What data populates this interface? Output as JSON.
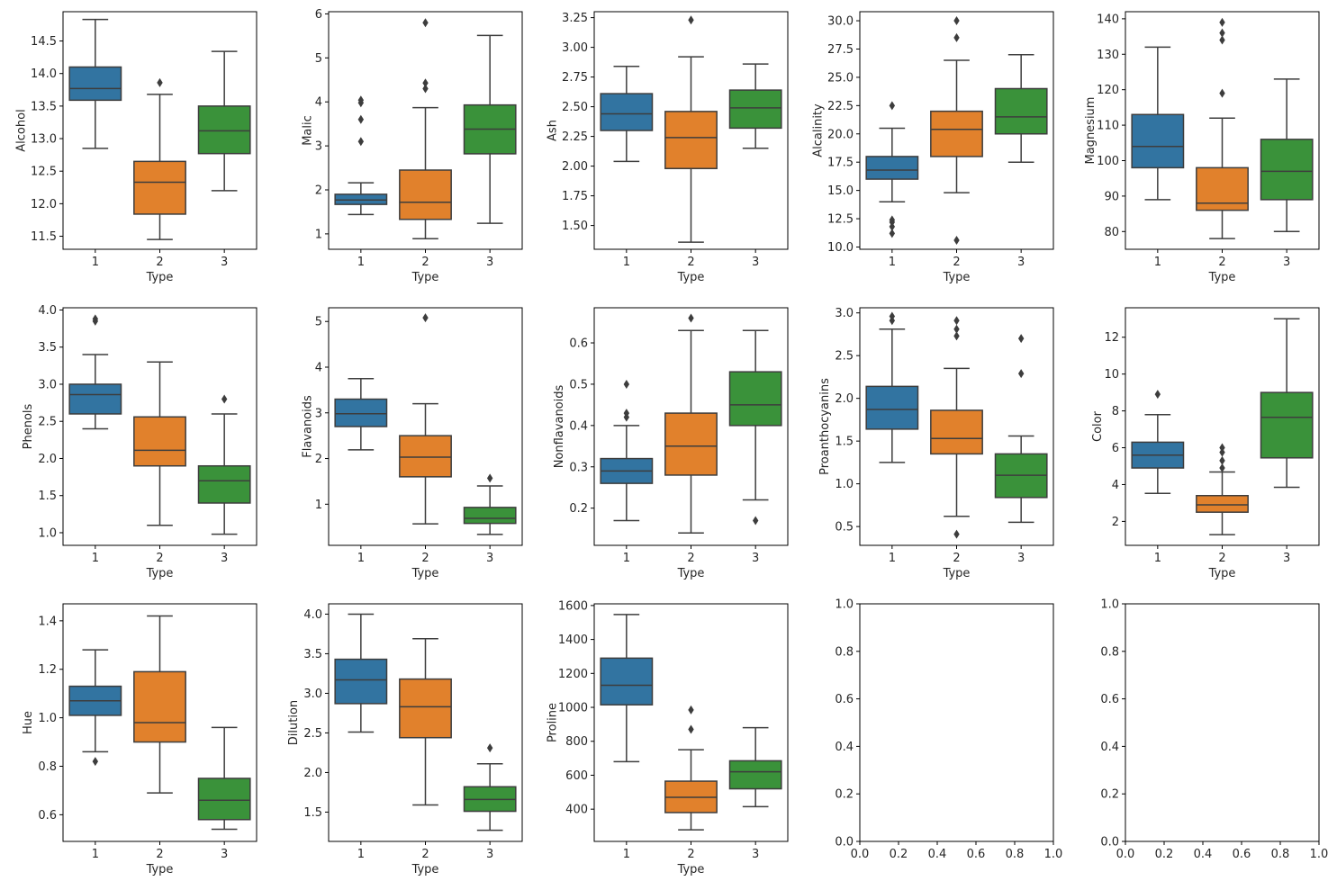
{
  "figure": {
    "colors": {
      "1": "#3274a1",
      "2": "#e1812c",
      "3": "#3a923a",
      "line": "#3d3d3d",
      "frame": "#000000"
    }
  },
  "chart_data": [
    {
      "type": "boxplot",
      "ylabel": "Alcohol",
      "xlabel": "Type",
      "categories": [
        "1",
        "2",
        "3"
      ],
      "ylim": [
        11.3,
        14.95
      ],
      "yticks": [
        11.5,
        12.0,
        12.5,
        13.0,
        13.5,
        14.0,
        14.5
      ],
      "ytick_labels": [
        "11.5",
        "12.0",
        "12.5",
        "13.0",
        "13.5",
        "14.0",
        "14.5"
      ],
      "boxes": [
        {
          "whislo": 12.85,
          "q1": 13.59,
          "med": 13.77,
          "q3": 14.1,
          "whishi": 14.83,
          "fliers": []
        },
        {
          "whislo": 11.45,
          "q1": 11.84,
          "med": 12.33,
          "q3": 12.65,
          "whishi": 13.68,
          "fliers": [
            13.86
          ]
        },
        {
          "whislo": 12.2,
          "q1": 12.77,
          "med": 13.12,
          "q3": 13.5,
          "whishi": 14.34,
          "fliers": []
        }
      ]
    },
    {
      "type": "boxplot",
      "ylabel": "Malic",
      "xlabel": "Type",
      "categories": [
        "1",
        "2",
        "3"
      ],
      "ylim": [
        0.65,
        6.05
      ],
      "yticks": [
        1,
        2,
        3,
        4,
        5,
        6
      ],
      "ytick_labels": [
        "1",
        "2",
        "3",
        "4",
        "5",
        "6"
      ],
      "boxes": [
        {
          "whislo": 1.44,
          "q1": 1.67,
          "med": 1.77,
          "q3": 1.9,
          "whishi": 2.16,
          "fliers": [
            3.1,
            3.6,
            3.98,
            4.04
          ]
        },
        {
          "whislo": 0.89,
          "q1": 1.33,
          "med": 1.72,
          "q3": 2.45,
          "whishi": 3.87,
          "fliers": [
            4.3,
            4.43,
            5.8
          ]
        },
        {
          "whislo": 1.24,
          "q1": 2.82,
          "med": 3.38,
          "q3": 3.93,
          "whishi": 5.51,
          "fliers": []
        }
      ]
    },
    {
      "type": "boxplot",
      "ylabel": "Ash",
      "xlabel": "Type",
      "categories": [
        "1",
        "2",
        "3"
      ],
      "ylim": [
        1.3,
        3.3
      ],
      "yticks": [
        1.5,
        1.75,
        2.0,
        2.25,
        2.5,
        2.75,
        3.0,
        3.25
      ],
      "ytick_labels": [
        "1.50",
        "1.75",
        "2.00",
        "2.25",
        "2.50",
        "2.75",
        "3.00",
        "3.25"
      ],
      "boxes": [
        {
          "whislo": 2.04,
          "q1": 2.3,
          "med": 2.44,
          "q3": 2.61,
          "whishi": 2.84,
          "fliers": []
        },
        {
          "whislo": 1.36,
          "q1": 1.98,
          "med": 2.24,
          "q3": 2.46,
          "whishi": 2.92,
          "fliers": [
            3.23
          ]
        },
        {
          "whislo": 2.15,
          "q1": 2.32,
          "med": 2.49,
          "q3": 2.64,
          "whishi": 2.86,
          "fliers": []
        }
      ]
    },
    {
      "type": "boxplot",
      "ylabel": "Alcalinity",
      "xlabel": "Type",
      "categories": [
        "1",
        "2",
        "3"
      ],
      "ylim": [
        9.8,
        30.8
      ],
      "yticks": [
        10.0,
        12.5,
        15.0,
        17.5,
        20.0,
        22.5,
        25.0,
        27.5,
        30.0
      ],
      "ytick_labels": [
        "10.0",
        "12.5",
        "15.0",
        "17.5",
        "20.0",
        "22.5",
        "25.0",
        "27.5",
        "30.0"
      ],
      "boxes": [
        {
          "whislo": 14.0,
          "q1": 16.0,
          "med": 16.8,
          "q3": 18.0,
          "whishi": 20.5,
          "fliers": [
            11.2,
            11.8,
            12.2,
            12.4,
            22.5
          ]
        },
        {
          "whislo": 14.8,
          "q1": 18.0,
          "med": 20.4,
          "q3": 22.0,
          "whishi": 26.5,
          "fliers": [
            10.6,
            28.5,
            30.0
          ]
        },
        {
          "whislo": 17.5,
          "q1": 20.0,
          "med": 21.5,
          "q3": 24.0,
          "whishi": 27.0,
          "fliers": []
        }
      ]
    },
    {
      "type": "boxplot",
      "ylabel": "Magnesium",
      "xlabel": "Type",
      "categories": [
        "1",
        "2",
        "3"
      ],
      "ylim": [
        75,
        142
      ],
      "yticks": [
        80,
        90,
        100,
        110,
        120,
        130,
        140
      ],
      "ytick_labels": [
        "80",
        "90",
        "100",
        "110",
        "120",
        "130",
        "140"
      ],
      "boxes": [
        {
          "whislo": 89,
          "q1": 98,
          "med": 104,
          "q3": 113,
          "whishi": 132,
          "fliers": []
        },
        {
          "whislo": 78,
          "q1": 86,
          "med": 88,
          "q3": 98,
          "whishi": 112,
          "fliers": [
            119,
            134,
            136,
            139
          ]
        },
        {
          "whislo": 80,
          "q1": 89,
          "med": 97,
          "q3": 106,
          "whishi": 123,
          "fliers": []
        }
      ]
    },
    {
      "type": "boxplot",
      "ylabel": "Phenols",
      "xlabel": "Type",
      "categories": [
        "1",
        "2",
        "3"
      ],
      "ylim": [
        0.83,
        4.03
      ],
      "yticks": [
        1.0,
        1.5,
        2.0,
        2.5,
        3.0,
        3.5,
        4.0
      ],
      "ytick_labels": [
        "1.0",
        "1.5",
        "2.0",
        "2.5",
        "3.0",
        "3.5",
        "4.0"
      ],
      "boxes": [
        {
          "whislo": 2.4,
          "q1": 2.6,
          "med": 2.86,
          "q3": 3.0,
          "whishi": 3.4,
          "fliers": [
            3.85,
            3.88
          ]
        },
        {
          "whislo": 1.1,
          "q1": 1.9,
          "med": 2.11,
          "q3": 2.56,
          "whishi": 3.3,
          "fliers": []
        },
        {
          "whislo": 0.98,
          "q1": 1.4,
          "med": 1.7,
          "q3": 1.9,
          "whishi": 2.6,
          "fliers": [
            2.8
          ]
        }
      ]
    },
    {
      "type": "boxplot",
      "ylabel": "Flavanoids",
      "xlabel": "Type",
      "categories": [
        "1",
        "2",
        "3"
      ],
      "ylim": [
        0.1,
        5.3
      ],
      "yticks": [
        1,
        2,
        3,
        4,
        5
      ],
      "ytick_labels": [
        "1",
        "2",
        "3",
        "4",
        "5"
      ],
      "boxes": [
        {
          "whislo": 2.19,
          "q1": 2.7,
          "med": 2.98,
          "q3": 3.3,
          "whishi": 3.75,
          "fliers": []
        },
        {
          "whislo": 0.57,
          "q1": 1.6,
          "med": 2.03,
          "q3": 2.5,
          "whishi": 3.2,
          "fliers": [
            5.08
          ]
        },
        {
          "whislo": 0.34,
          "q1": 0.58,
          "med": 0.69,
          "q3": 0.93,
          "whishi": 1.4,
          "fliers": [
            1.57
          ]
        }
      ]
    },
    {
      "type": "boxplot",
      "ylabel": "Nonflavanoids",
      "xlabel": "Type",
      "categories": [
        "1",
        "2",
        "3"
      ],
      "ylim": [
        0.11,
        0.685
      ],
      "yticks": [
        0.2,
        0.3,
        0.4,
        0.5,
        0.6
      ],
      "ytick_labels": [
        "0.2",
        "0.3",
        "0.4",
        "0.5",
        "0.6"
      ],
      "boxes": [
        {
          "whislo": 0.17,
          "q1": 0.26,
          "med": 0.29,
          "q3": 0.32,
          "whishi": 0.4,
          "fliers": [
            0.42,
            0.43,
            0.5
          ]
        },
        {
          "whislo": 0.14,
          "q1": 0.28,
          "med": 0.35,
          "q3": 0.43,
          "whishi": 0.63,
          "fliers": [
            0.66
          ]
        },
        {
          "whislo": 0.22,
          "q1": 0.4,
          "med": 0.45,
          "q3": 0.53,
          "whishi": 0.63,
          "fliers": [
            0.17
          ]
        }
      ]
    },
    {
      "type": "boxplot",
      "ylabel": "Proanthocyanins",
      "xlabel": "Type",
      "categories": [
        "1",
        "2",
        "3"
      ],
      "ylim": [
        0.28,
        3.06
      ],
      "yticks": [
        0.5,
        1.0,
        1.5,
        2.0,
        2.5,
        3.0
      ],
      "ytick_labels": [
        "0.5",
        "1.0",
        "1.5",
        "2.0",
        "2.5",
        "3.0"
      ],
      "boxes": [
        {
          "whislo": 1.25,
          "q1": 1.64,
          "med": 1.87,
          "q3": 2.14,
          "whishi": 2.81,
          "fliers": [
            2.91,
            2.96
          ]
        },
        {
          "whislo": 0.62,
          "q1": 1.35,
          "med": 1.53,
          "q3": 1.86,
          "whishi": 2.35,
          "fliers": [
            0.41,
            2.73,
            2.81,
            2.91
          ]
        },
        {
          "whislo": 0.55,
          "q1": 0.84,
          "med": 1.1,
          "q3": 1.35,
          "whishi": 1.56,
          "fliers": [
            2.29,
            2.7
          ]
        }
      ]
    },
    {
      "type": "boxplot",
      "ylabel": "Color",
      "xlabel": "Type",
      "categories": [
        "1",
        "2",
        "3"
      ],
      "ylim": [
        0.7,
        13.6
      ],
      "yticks": [
        2,
        4,
        6,
        8,
        10,
        12
      ],
      "ytick_labels": [
        "2",
        "4",
        "6",
        "8",
        "10",
        "12"
      ],
      "boxes": [
        {
          "whislo": 3.52,
          "q1": 4.9,
          "med": 5.6,
          "q3": 6.3,
          "whishi": 7.8,
          "fliers": [
            8.9
          ]
        },
        {
          "whislo": 1.28,
          "q1": 2.5,
          "med": 2.9,
          "q3": 3.4,
          "whishi": 4.68,
          "fliers": [
            4.9,
            5.3,
            5.75,
            6.0
          ]
        },
        {
          "whislo": 3.85,
          "q1": 5.45,
          "med": 7.65,
          "q3": 9.0,
          "whishi": 13.0,
          "fliers": []
        }
      ]
    },
    {
      "type": "boxplot",
      "ylabel": "Hue",
      "xlabel": "Type",
      "categories": [
        "1",
        "2",
        "3"
      ],
      "ylim": [
        0.49,
        1.47
      ],
      "yticks": [
        0.6,
        0.8,
        1.0,
        1.2,
        1.4
      ],
      "ytick_labels": [
        "0.6",
        "0.8",
        "1.0",
        "1.2",
        "1.4"
      ],
      "boxes": [
        {
          "whislo": 0.86,
          "q1": 1.01,
          "med": 1.07,
          "q3": 1.13,
          "whishi": 1.28,
          "fliers": [
            0.82
          ]
        },
        {
          "whislo": 0.69,
          "q1": 0.9,
          "med": 0.98,
          "q3": 1.19,
          "whishi": 1.42,
          "fliers": []
        },
        {
          "whislo": 0.54,
          "q1": 0.58,
          "med": 0.66,
          "q3": 0.75,
          "whishi": 0.96,
          "fliers": []
        }
      ]
    },
    {
      "type": "boxplot",
      "ylabel": "Dilution",
      "xlabel": "Type",
      "categories": [
        "1",
        "2",
        "3"
      ],
      "ylim": [
        1.13,
        4.13
      ],
      "yticks": [
        1.5,
        2.0,
        2.5,
        3.0,
        3.5,
        4.0
      ],
      "ytick_labels": [
        "1.5",
        "2.0",
        "2.5",
        "3.0",
        "3.5",
        "4.0"
      ],
      "boxes": [
        {
          "whislo": 2.51,
          "q1": 2.87,
          "med": 3.17,
          "q3": 3.43,
          "whishi": 4.0,
          "fliers": []
        },
        {
          "whislo": 1.59,
          "q1": 2.44,
          "med": 2.83,
          "q3": 3.18,
          "whishi": 3.69,
          "fliers": []
        },
        {
          "whislo": 1.27,
          "q1": 1.51,
          "med": 1.66,
          "q3": 1.82,
          "whishi": 2.11,
          "fliers": [
            2.31
          ]
        }
      ]
    },
    {
      "type": "boxplot",
      "ylabel": "Proline",
      "xlabel": "Type",
      "categories": [
        "1",
        "2",
        "3"
      ],
      "ylim": [
        210,
        1610
      ],
      "yticks": [
        400,
        600,
        800,
        1000,
        1200,
        1400,
        1600
      ],
      "ytick_labels": [
        "400",
        "600",
        "800",
        "1000",
        "1200",
        "1400",
        "1600"
      ],
      "boxes": [
        {
          "whislo": 680,
          "q1": 1015,
          "med": 1130,
          "q3": 1290,
          "whishi": 1547,
          "fliers": []
        },
        {
          "whislo": 278,
          "q1": 380,
          "med": 470,
          "q3": 565,
          "whishi": 750,
          "fliers": [
            870,
            985
          ]
        },
        {
          "whislo": 415,
          "q1": 520,
          "med": 620,
          "q3": 685,
          "whishi": 880,
          "fliers": []
        }
      ]
    },
    {
      "type": "empty",
      "ylabel": "",
      "xlabel": "",
      "xlim": [
        0,
        1
      ],
      "ylim": [
        0,
        1
      ],
      "ticks": [
        0.0,
        0.2,
        0.4,
        0.6,
        0.8,
        1.0
      ],
      "tick_labels": [
        "0.0",
        "0.2",
        "0.4",
        "0.6",
        "0.8",
        "1.0"
      ]
    },
    {
      "type": "empty",
      "ylabel": "",
      "xlabel": "",
      "xlim": [
        0,
        1
      ],
      "ylim": [
        0,
        1
      ],
      "ticks": [
        0.0,
        0.2,
        0.4,
        0.6,
        0.8,
        1.0
      ],
      "tick_labels": [
        "0.0",
        "0.2",
        "0.4",
        "0.6",
        "0.8",
        "1.0"
      ]
    }
  ]
}
